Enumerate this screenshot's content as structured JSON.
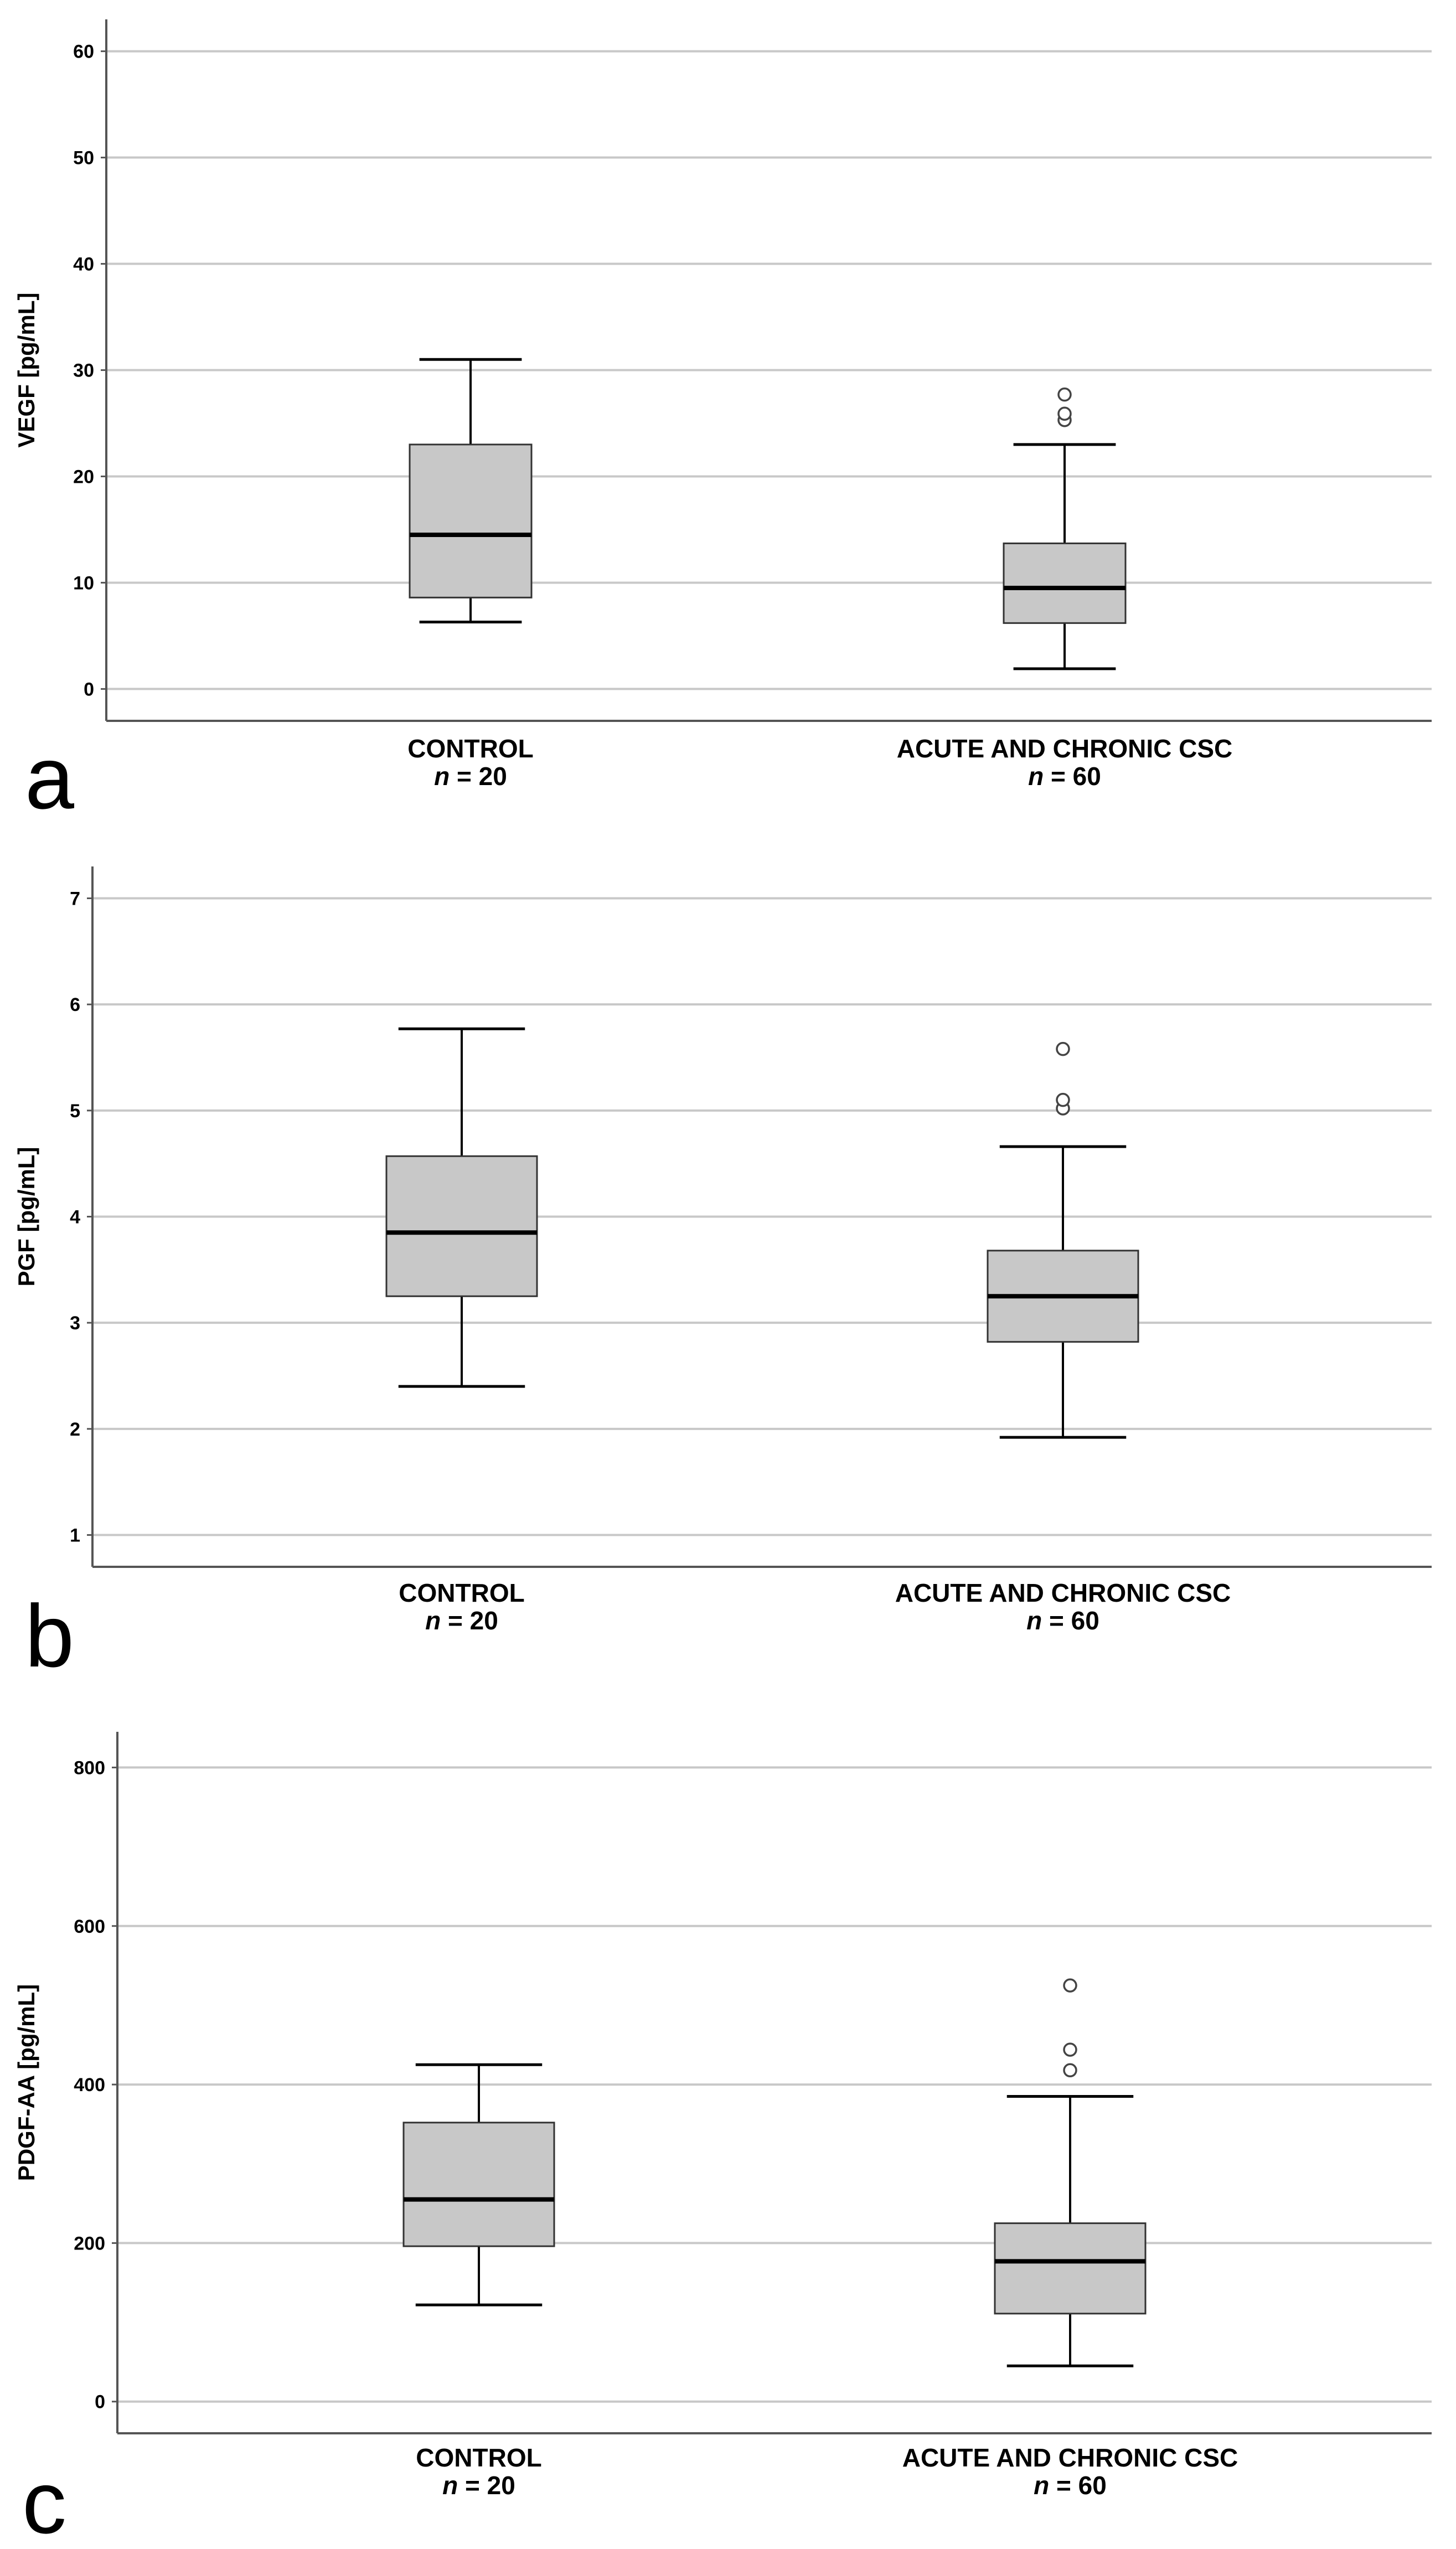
{
  "chart_data": [
    {
      "type": "box",
      "panel": "a",
      "ylabel": "VEGF [pg/mL]",
      "ylim": [
        -3,
        63
      ],
      "yticks": [
        0,
        10,
        20,
        30,
        40,
        50,
        60
      ],
      "grid": true,
      "categories": [
        {
          "label": "CONTROL",
          "n_prefix": "n",
          "n_text": " = 20",
          "whisker_low": 6.3,
          "q1": 8.6,
          "median": 14.5,
          "q3": 23.0,
          "whisker_high": 31.0,
          "outliers": []
        },
        {
          "label": "ACUTE AND CHRONIC CSC",
          "n_prefix": "n",
          "n_text": " = 60",
          "whisker_low": 1.9,
          "q1": 6.2,
          "median": 9.5,
          "q3": 13.7,
          "whisker_high": 23.0,
          "outliers": [
            25.3,
            25.9,
            27.7
          ]
        }
      ]
    },
    {
      "type": "box",
      "panel": "b",
      "ylabel": "PGF [pg/mL]",
      "ylim": [
        0.7,
        7.3
      ],
      "yticks": [
        1,
        2,
        3,
        4,
        5,
        6,
        7
      ],
      "grid": true,
      "categories": [
        {
          "label": "CONTROL",
          "n_prefix": "n",
          "n_text": " = 20",
          "whisker_low": 2.4,
          "q1": 3.25,
          "median": 3.85,
          "q3": 4.57,
          "whisker_high": 5.77,
          "outliers": []
        },
        {
          "label": "ACUTE AND CHRONIC CSC",
          "n_prefix": "n",
          "n_text": " = 60",
          "whisker_low": 1.92,
          "q1": 2.82,
          "median": 3.25,
          "q3": 3.68,
          "whisker_high": 4.66,
          "outliers": [
            5.02,
            5.1,
            5.58
          ]
        }
      ]
    },
    {
      "type": "box",
      "panel": "c",
      "ylabel": "PDGF-AA [pg/mL]",
      "ylim": [
        -40,
        845
      ],
      "yticks": [
        0,
        200,
        400,
        600,
        800
      ],
      "grid": true,
      "categories": [
        {
          "label": "CONTROL",
          "n_prefix": "n",
          "n_text": " = 20",
          "whisker_low": 122,
          "q1": 196,
          "median": 255,
          "q3": 352,
          "whisker_high": 425,
          "outliers": []
        },
        {
          "label": "ACUTE AND CHRONIC CSC",
          "n_prefix": "n",
          "n_text": " = 60",
          "whisker_low": 45,
          "q1": 111,
          "median": 177,
          "q3": 225,
          "whisker_high": 385,
          "outliers": [
            418,
            444,
            525
          ]
        }
      ]
    }
  ],
  "colors": {
    "box_fill": "#c8c8c8",
    "grid": "#c8c8c8",
    "axis": "#555555",
    "stroke": "#000000"
  }
}
